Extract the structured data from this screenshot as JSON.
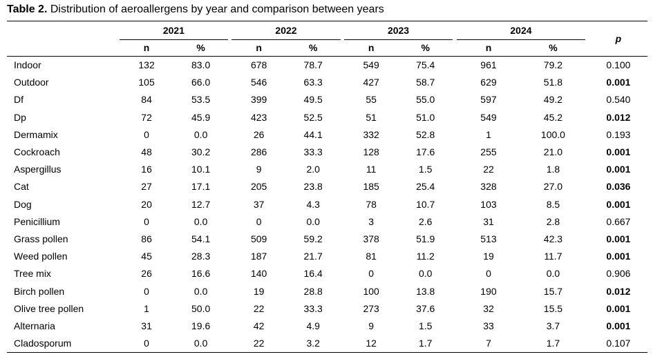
{
  "caption": {
    "label": "Table 2.",
    "text": " Distribution of aeroallergens by year and comparison between years"
  },
  "years": [
    "2021",
    "2022",
    "2023",
    "2024"
  ],
  "sub_headers": {
    "n": "n",
    "pct": "%"
  },
  "p_header": "p",
  "rows": [
    {
      "name": "Indoor",
      "v": [
        "132",
        "83.0",
        "678",
        "78.7",
        "549",
        "75.4",
        "961",
        "79.2"
      ],
      "p": "0.100",
      "sig": false
    },
    {
      "name": "Outdoor",
      "v": [
        "105",
        "66.0",
        "546",
        "63.3",
        "427",
        "58.7",
        "629",
        "51.8"
      ],
      "p": "0.001",
      "sig": true
    },
    {
      "name": "Df",
      "v": [
        "84",
        "53.5",
        "399",
        "49.5",
        "55",
        "55.0",
        "597",
        "49.2"
      ],
      "p": "0.540",
      "sig": false
    },
    {
      "name": "Dp",
      "v": [
        "72",
        "45.9",
        "423",
        "52.5",
        "51",
        "51.0",
        "549",
        "45.2"
      ],
      "p": "0.012",
      "sig": true
    },
    {
      "name": "Dermamix",
      "v": [
        "0",
        "0.0",
        "26",
        "44.1",
        "332",
        "52.8",
        "1",
        "100.0"
      ],
      "p": "0.193",
      "sig": false
    },
    {
      "name": "Cockroach",
      "v": [
        "48",
        "30.2",
        "286",
        "33.3",
        "128",
        "17.6",
        "255",
        "21.0"
      ],
      "p": "0.001",
      "sig": true
    },
    {
      "name": "Aspergillus",
      "v": [
        "16",
        "10.1",
        "9",
        "2.0",
        "11",
        "1.5",
        "22",
        "1.8"
      ],
      "p": "0.001",
      "sig": true
    },
    {
      "name": "Cat",
      "v": [
        "27",
        "17.1",
        "205",
        "23.8",
        "185",
        "25.4",
        "328",
        "27.0"
      ],
      "p": "0.036",
      "sig": true
    },
    {
      "name": "Dog",
      "v": [
        "20",
        "12.7",
        "37",
        "4.3",
        "78",
        "10.7",
        "103",
        "8.5"
      ],
      "p": "0.001",
      "sig": true
    },
    {
      "name": "Penicillium",
      "v": [
        "0",
        "0.0",
        "0",
        "0.0",
        "3",
        "2.6",
        "31",
        "2.8"
      ],
      "p": "0.667",
      "sig": false
    },
    {
      "name": "Grass pollen",
      "v": [
        "86",
        "54.1",
        "509",
        "59.2",
        "378",
        "51.9",
        "513",
        "42.3"
      ],
      "p": "0.001",
      "sig": true
    },
    {
      "name": "Weed pollen",
      "v": [
        "45",
        "28.3",
        "187",
        "21.7",
        "81",
        "11.2",
        "19",
        "11.7"
      ],
      "p": "0.001",
      "sig": true
    },
    {
      "name": "Tree mix",
      "v": [
        "26",
        "16.6",
        "140",
        "16.4",
        "0",
        "0.0",
        "0",
        "0.0"
      ],
      "p": "0.906",
      "sig": false
    },
    {
      "name": "Birch pollen",
      "v": [
        "0",
        "0.0",
        "19",
        "28.8",
        "100",
        "13.8",
        "190",
        "15.7"
      ],
      "p": "0.012",
      "sig": true
    },
    {
      "name": "Olive tree pollen",
      "v": [
        "1",
        "50.0",
        "22",
        "33.3",
        "273",
        "37.6",
        "32",
        "15.5"
      ],
      "p": "0.001",
      "sig": true
    },
    {
      "name": "Alternaria",
      "v": [
        "31",
        "19.6",
        "42",
        "4.9",
        "9",
        "1.5",
        "33",
        "3.7"
      ],
      "p": "0.001",
      "sig": true
    },
    {
      "name": "Cladosporum",
      "v": [
        "0",
        "0.0",
        "22",
        "3.2",
        "12",
        "1.7",
        "7",
        "1.7"
      ],
      "p": "0.107",
      "sig": false
    }
  ]
}
